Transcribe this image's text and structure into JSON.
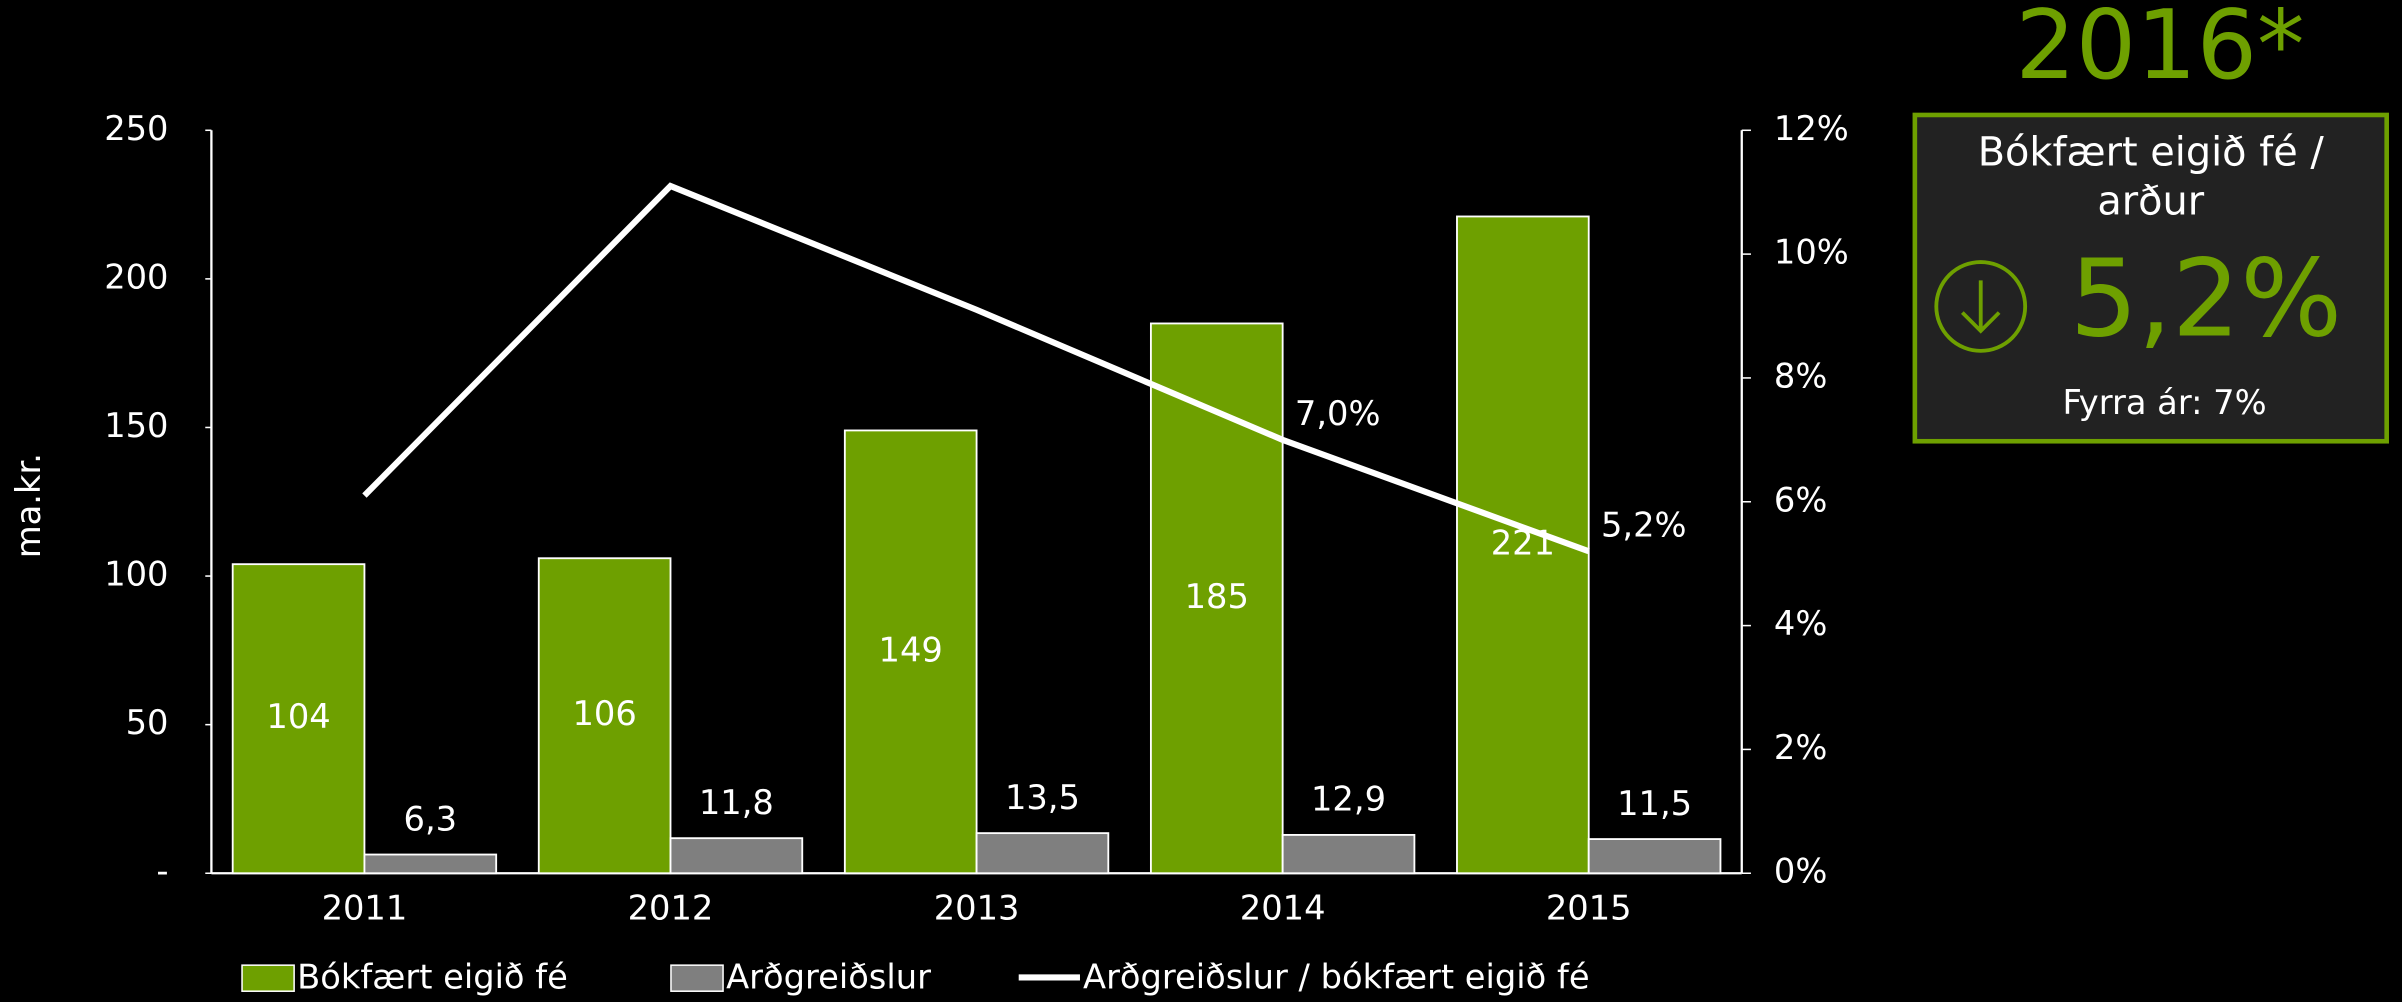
{
  "chart_data": {
    "type": "bar",
    "categories": [
      "2011",
      "2012",
      "2013",
      "2014",
      "2015"
    ],
    "ylabel": "ma.kr.",
    "series": [
      {
        "name": "Bókfært eigið fé",
        "color": "#6ea000",
        "values": [
          104,
          106,
          149,
          185,
          221
        ]
      },
      {
        "name": "Arðgreiðslur",
        "color": "#7f7f7f",
        "values": [
          6.3,
          11.8,
          13.5,
          12.9,
          11.5
        ],
        "value_labels": [
          "6,3",
          "11,8",
          "13,5",
          "12,9",
          "11,5"
        ]
      },
      {
        "name": "Arðgreiðslur / bókfært eigið fé",
        "type": "line",
        "axis": "y2",
        "color": "#ffffff",
        "values": [
          6.1,
          11.1,
          9.1,
          7.0,
          5.2
        ],
        "value_labels": [
          null,
          null,
          null,
          "7,0%",
          "5,2%"
        ]
      }
    ],
    "ylim": [
      0,
      250
    ],
    "yticks": [
      {
        "value": 0,
        "label": "-"
      },
      50,
      100,
      150,
      200,
      250
    ],
    "y2lim": [
      0,
      12
    ],
    "y2ticks": [
      {
        "value": 0,
        "label": "0%"
      },
      {
        "value": 2,
        "label": "2%"
      },
      {
        "value": 4,
        "label": "4%"
      },
      {
        "value": 6,
        "label": "6%"
      },
      {
        "value": 8,
        "label": "8%"
      },
      {
        "value": 10,
        "label": "10%"
      },
      {
        "value": 12,
        "label": "12%"
      }
    ],
    "grid": false,
    "legend": "bottom"
  },
  "kpi": {
    "title": "2016*",
    "label": "Bókfært eigið fé / arður",
    "value": "5,2%",
    "note": "Fyrra ár: 7%"
  }
}
